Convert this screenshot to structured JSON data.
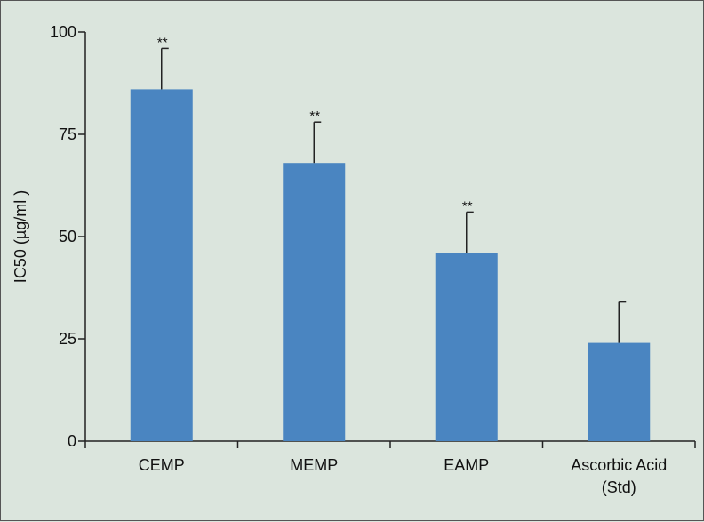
{
  "chart_data": {
    "type": "bar",
    "categories": [
      [
        "CEMP"
      ],
      [
        "MEMP"
      ],
      [
        "EAMP"
      ],
      [
        "Ascorbic Acid",
        "(Std)"
      ]
    ],
    "values": [
      86,
      68,
      46,
      24
    ],
    "errors": [
      10,
      10,
      10,
      10
    ],
    "annotations": [
      "**",
      "**",
      "**",
      ""
    ],
    "ylabel": "IC50 (µg/ml )",
    "xlabel": "",
    "ylim": [
      0,
      100
    ],
    "yticks": [
      0,
      25,
      50,
      75,
      100
    ],
    "grid": false,
    "legend": "none",
    "bar_color": "#4a85c1",
    "background_color": "#dbe5dd"
  }
}
